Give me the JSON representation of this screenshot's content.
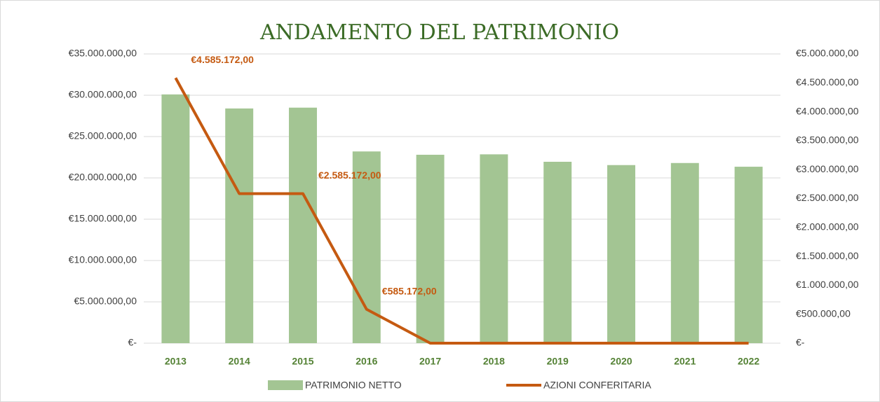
{
  "chart_data": {
    "type": "bar-line",
    "title": "ANDAMENTO DEL PATRIMONIO",
    "categories": [
      "2013",
      "2014",
      "2015",
      "2016",
      "2017",
      "2018",
      "2019",
      "2020",
      "2021",
      "2022"
    ],
    "series": [
      {
        "name": "PATRIMONIO NETTO",
        "type": "bar",
        "color": "#a3c593",
        "values": [
          30100000,
          28400000,
          28500000,
          23200000,
          22800000,
          22850000,
          21950000,
          21550000,
          21800000,
          21350000
        ]
      },
      {
        "name": "AZIONI CONFERITARIA",
        "type": "line",
        "axis": "y2",
        "color": "#c55a11",
        "values": [
          4585172,
          2585172,
          2585172,
          585172,
          0,
          0,
          0,
          0,
          0,
          0
        ],
        "value_labels": [
          "€4.585.172,00",
          null,
          "€2.585.172,00",
          "€585.172,00",
          null,
          null,
          null,
          null,
          null,
          null
        ]
      }
    ],
    "ylim": [
      0,
      35000000
    ],
    "yticks": [
      {
        "value": 0,
        "label": "€-"
      },
      {
        "value": 5000000,
        "label": "€5.000.000,00"
      },
      {
        "value": 10000000,
        "label": "€10.000.000,00"
      },
      {
        "value": 15000000,
        "label": "€15.000.000,00"
      },
      {
        "value": 20000000,
        "label": "€20.000.000,00"
      },
      {
        "value": 25000000,
        "label": "€25.000.000,00"
      },
      {
        "value": 30000000,
        "label": "€30.000.000,00"
      },
      {
        "value": 35000000,
        "label": "€35.000.000,00"
      }
    ],
    "y2lim": [
      0,
      5000000
    ],
    "y2ticks": [
      {
        "value": 0,
        "label": "€-"
      },
      {
        "value": 500000,
        "label": "€500.000,00"
      },
      {
        "value": 1000000,
        "label": "€1.000.000,00"
      },
      {
        "value": 1500000,
        "label": "€1.500.000,00"
      },
      {
        "value": 2000000,
        "label": "€2.000.000,00"
      },
      {
        "value": 2500000,
        "label": "€2.500.000,00"
      },
      {
        "value": 3000000,
        "label": "€3.000.000,00"
      },
      {
        "value": 3500000,
        "label": "€3.500.000,00"
      },
      {
        "value": 4000000,
        "label": "€4.000.000,00"
      },
      {
        "value": 4500000,
        "label": "€4.500.000,00"
      },
      {
        "value": 5000000,
        "label": "€5.000.000,00"
      }
    ],
    "grid": true,
    "legend": "bottom"
  }
}
